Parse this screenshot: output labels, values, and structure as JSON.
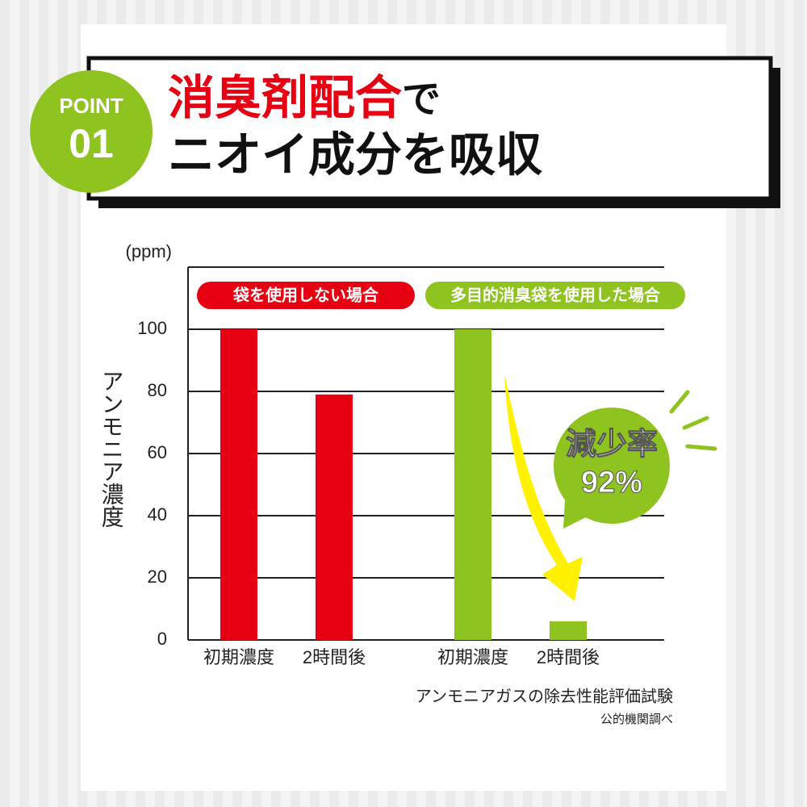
{
  "header": {
    "badge_top": "POINT",
    "badge_num": "01",
    "title_line1_highlight": "消臭剤配合",
    "title_line1_rest": "で",
    "title_line2": "ニオイ成分を吸収"
  },
  "chart_data": {
    "type": "bar",
    "unit": "(ppm)",
    "y_label": "アンモニア濃度",
    "categories": [
      "初期濃度",
      "2時間後",
      "初期濃度",
      "2時間後"
    ],
    "series": [
      {
        "name": "袋を使用しない場合",
        "color": "#e60012",
        "values": [
          100,
          79,
          null,
          null
        ]
      },
      {
        "name": "多目的消臭袋を使用した場合",
        "color": "#8fc31f",
        "values": [
          null,
          null,
          100,
          6
        ]
      }
    ],
    "ylim": [
      0,
      120
    ],
    "yticks": [
      0,
      20,
      40,
      60,
      80,
      100
    ],
    "grid": true,
    "callout": {
      "label": "減少率",
      "value_text": "92%"
    },
    "source": "アンモニアガスの除去性能評価試験",
    "note": "公的機関調べ"
  }
}
